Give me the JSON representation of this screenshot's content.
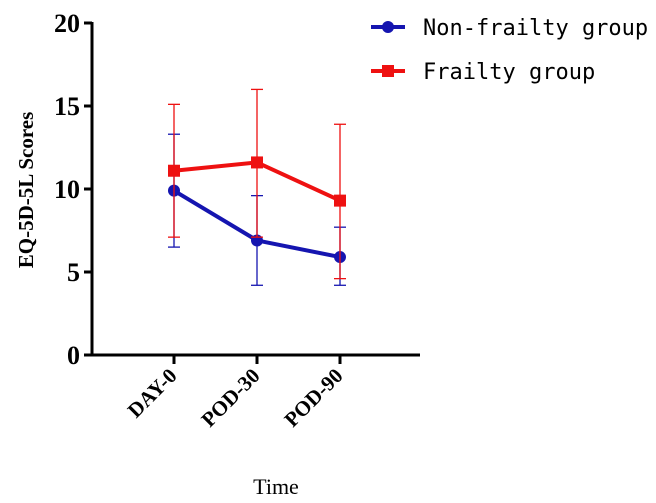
{
  "chart_data": {
    "type": "line",
    "xlabel": "Time",
    "ylabel": "EQ-5D-5L Scores",
    "categories": [
      "DAY-0",
      "POD-30",
      "POD-90"
    ],
    "ylim": [
      0,
      20
    ],
    "yticks": [
      0,
      5,
      10,
      15,
      20
    ],
    "grid": false,
    "legend_position": "top-right",
    "series": [
      {
        "name": "Non-frailty group",
        "color": "#1515b0",
        "marker": "circle",
        "values": [
          9.9,
          6.9,
          5.9
        ],
        "error_low": [
          6.5,
          4.2,
          4.2
        ],
        "error_high": [
          13.3,
          9.6,
          7.7
        ]
      },
      {
        "name": "Frailty group",
        "color": "#ee1111",
        "marker": "square",
        "values": [
          11.1,
          11.6,
          9.3
        ],
        "error_low": [
          7.1,
          7.1,
          4.6
        ],
        "error_high": [
          15.1,
          16.0,
          13.9
        ]
      }
    ]
  }
}
